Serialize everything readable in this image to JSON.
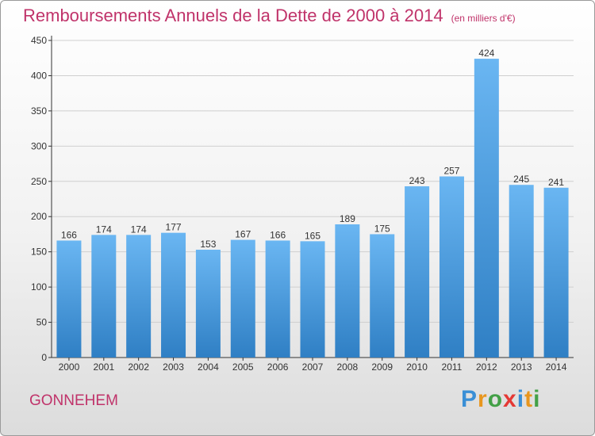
{
  "chart_data": {
    "type": "bar",
    "title": "Remboursements Annuels de la Dette de 2000 à 2014",
    "subtitle": "(en milliers d'€)",
    "categories": [
      "2000",
      "2001",
      "2002",
      "2003",
      "2004",
      "2005",
      "2006",
      "2007",
      "2008",
      "2009",
      "2010",
      "2011",
      "2012",
      "2013",
      "2014"
    ],
    "values": [
      166,
      174,
      174,
      177,
      153,
      167,
      166,
      165,
      189,
      175,
      243,
      257,
      424,
      245,
      241
    ],
    "yticks": [
      0,
      50,
      100,
      150,
      200,
      250,
      300,
      350,
      400,
      450
    ],
    "ylim": [
      0,
      450
    ],
    "grid": true,
    "bar_color": "#3a8fd6"
  },
  "footer": {
    "town": "GONNEHEM",
    "logo": {
      "letters": [
        "P",
        "r",
        "o",
        "x",
        "i",
        "t",
        "i"
      ],
      "colors": [
        "#3a8fd6",
        "#e8961e",
        "#43a047",
        "#e53935",
        "#3a8fd6",
        "#e8961e",
        "#43a047"
      ]
    }
  }
}
